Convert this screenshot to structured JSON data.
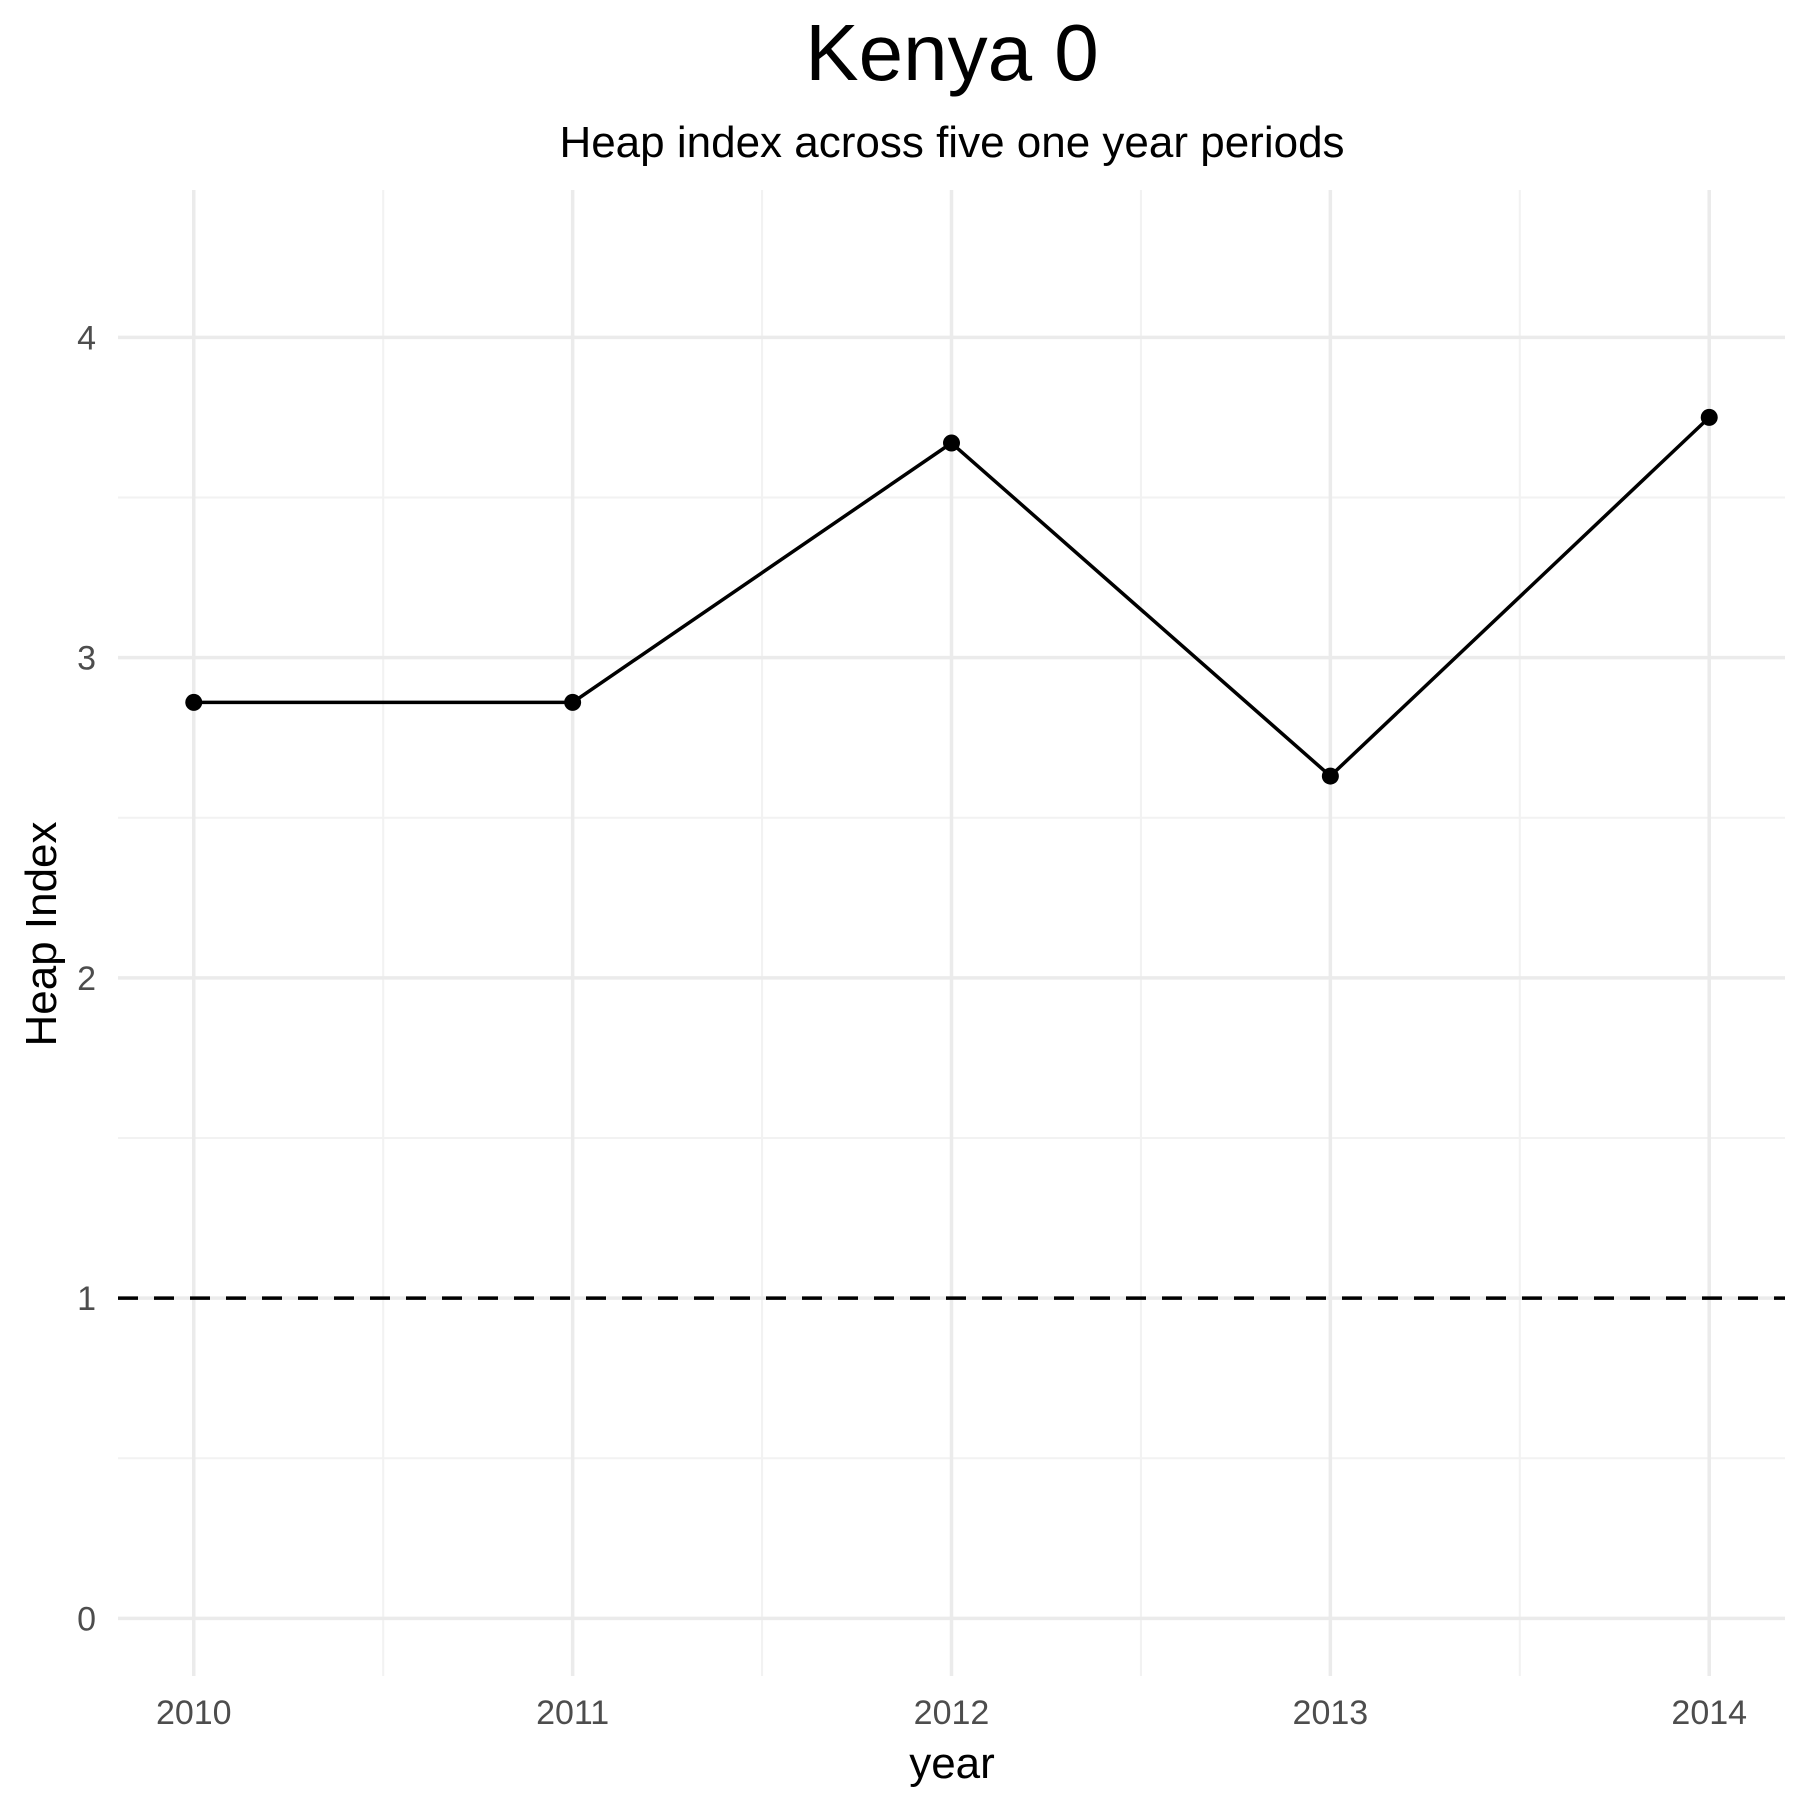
{
  "chart_data": {
    "type": "line",
    "title": "Kenya 0",
    "subtitle": "Heap index across five one year periods",
    "xlabel": "year",
    "ylabel": "Heap Index",
    "x": [
      2010,
      2011,
      2012,
      2013,
      2014
    ],
    "xticks": [
      "2010",
      "2011",
      "2012",
      "2013",
      "2014"
    ],
    "yticks": [
      "0",
      "1",
      "2",
      "3",
      "4"
    ],
    "series": [
      {
        "values": [
          2.86,
          2.86,
          3.67,
          2.63,
          3.75
        ]
      }
    ],
    "xlim": [
      2009.8,
      2014.2
    ],
    "ylim": [
      -0.18,
      4.46
    ],
    "reference_line": {
      "y": 1,
      "style": "dashed"
    },
    "grid": true,
    "legend": "none",
    "colors": {
      "line": "#000000",
      "grid_major": "#ebebeb",
      "grid_minor": "#f2f2f2",
      "reference_line": "#000000"
    }
  }
}
